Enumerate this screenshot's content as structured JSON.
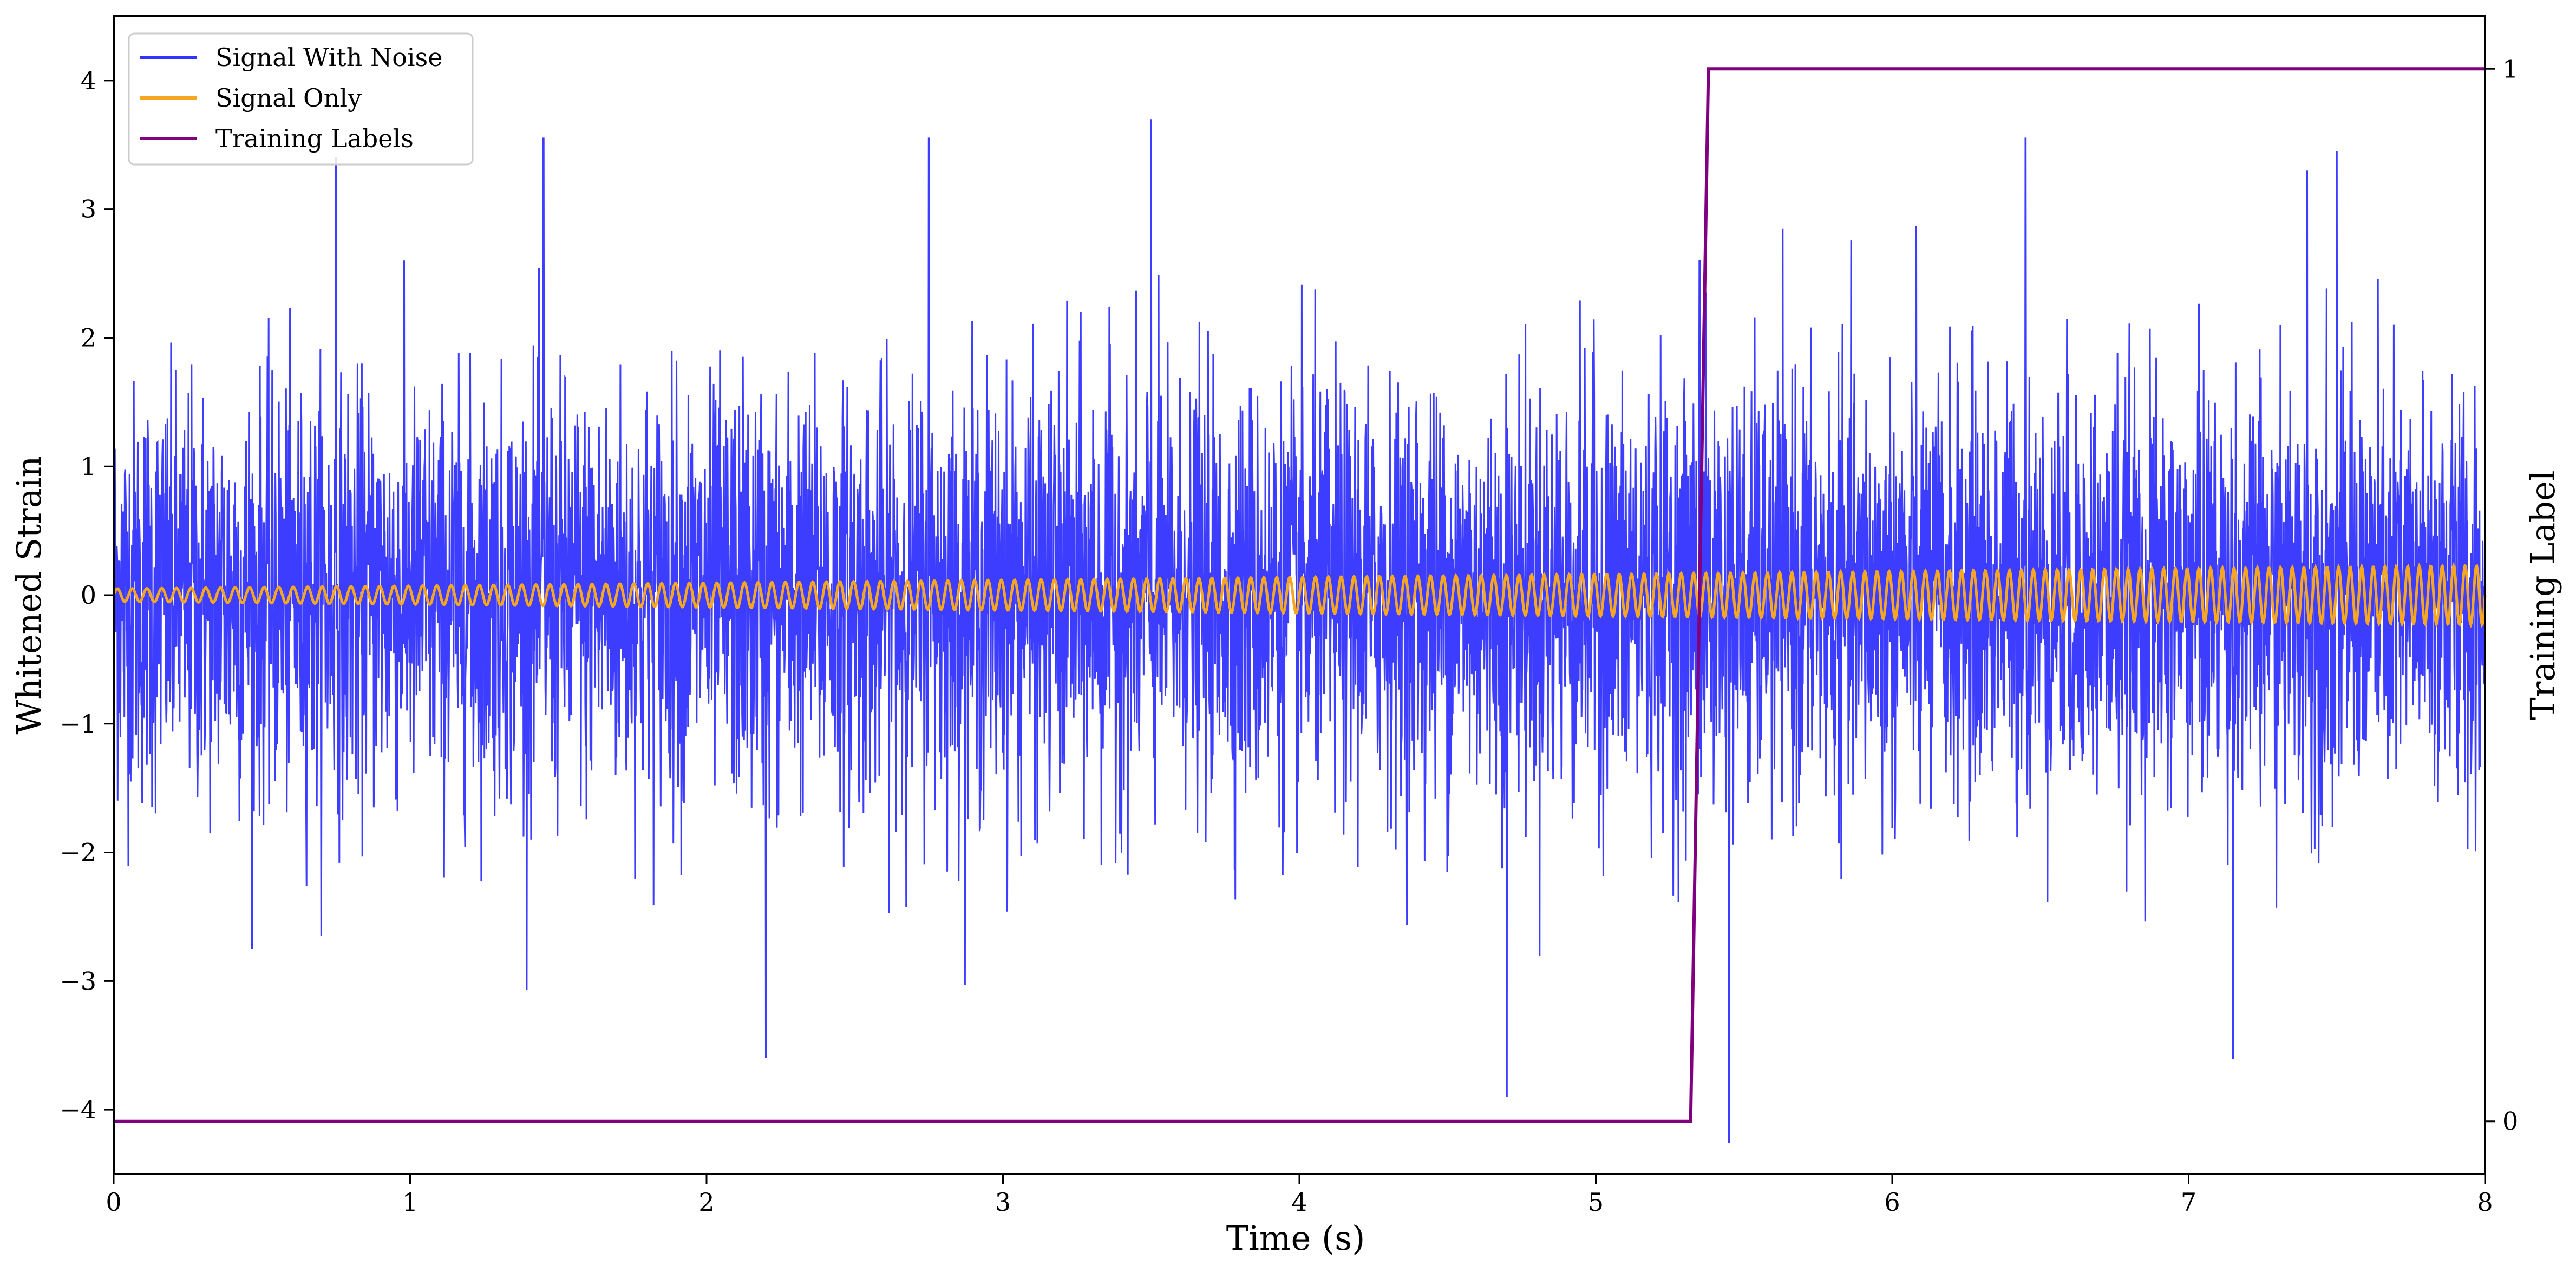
{
  "chart_data": {
    "type": "line",
    "xlabel": "Time (s)",
    "ylabel": "Whitened Strain",
    "y2label": "Training Label",
    "xlim": [
      0,
      8
    ],
    "ylim": [
      -4.5,
      4.5
    ],
    "y2lim": [
      -0.05,
      1.05
    ],
    "x_ticks": [
      0,
      1,
      2,
      3,
      4,
      5,
      6,
      7,
      8
    ],
    "y_ticks": [
      -4,
      -3,
      -2,
      -1,
      0,
      1,
      2,
      3,
      4
    ],
    "y2_ticks": [
      0,
      1
    ],
    "grid": false,
    "legend": {
      "position": "top-left"
    },
    "series": [
      {
        "name": "Signal With Noise",
        "color": "#3333ff",
        "axis": "left",
        "description_values": {
          "mean": 0,
          "typical_range": [
            -2.6,
            2.6
          ],
          "peaks": [
            [
              0.75,
              3.4
            ],
            [
              1.45,
              3.55
            ],
            [
              2.2,
              -3.6
            ],
            [
              2.75,
              3.55
            ],
            [
              3.5,
              3.7
            ],
            [
              4.7,
              -3.9
            ],
            [
              5.35,
              2.6
            ],
            [
              5.45,
              -4.25
            ],
            [
              6.45,
              3.55
            ],
            [
              7.5,
              3.45
            ],
            [
              7.4,
              3.3
            ],
            [
              7.15,
              -3.6
            ]
          ]
        }
      },
      {
        "name": "Signal Only",
        "color": "#f5a623",
        "axis": "left",
        "amplitude_at_start": 0.05,
        "amplitude_at_end": 0.23,
        "frequency_hz_at_start": 20,
        "frequency_hz_at_end": 26
      },
      {
        "name": "Training Labels",
        "color": "#800080",
        "axis": "right",
        "x": [
          0,
          5.32,
          5.38,
          8
        ],
        "values": [
          0,
          0,
          1,
          1
        ]
      }
    ]
  }
}
